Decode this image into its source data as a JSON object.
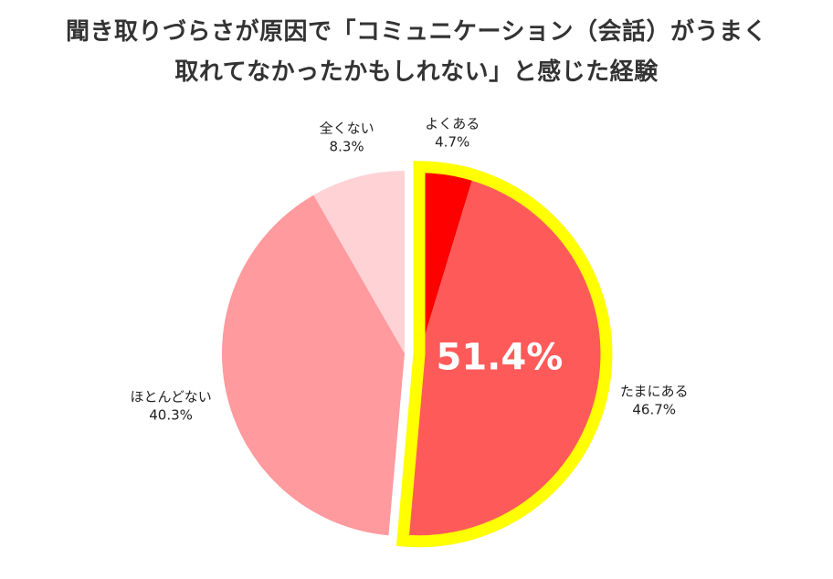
{
  "title": {
    "line1": "聞き取りづらさが原因で「コミュニケーション（会話）がうまく",
    "line2": "取れてなかったかもしれない」と感じた経験"
  },
  "chart_data": {
    "type": "pie",
    "title": "聞き取りづらさが原因で「コミュニケーション（会話）がうまく取れてなかったかもしれない」と感じた経験",
    "slices": [
      {
        "label": "よくある",
        "value": 4.7,
        "display": "4.7%",
        "color": "#ff0000"
      },
      {
        "label": "たまにある",
        "value": 46.7,
        "display": "46.7%",
        "color": "#ff5a5a"
      },
      {
        "label": "ほとんどない",
        "value": 40.3,
        "display": "40.3%",
        "color": "#ff9a9e"
      },
      {
        "label": "全くない",
        "value": 8.3,
        "display": "8.3%",
        "color": "#ffd3d6"
      }
    ],
    "highlight": {
      "text": "51.4%",
      "value": 51.4,
      "slices": [
        "よくある",
        "たまにある"
      ],
      "outline_color": "#ffff00"
    },
    "start": "12 o'clock",
    "direction": "clockwise"
  }
}
